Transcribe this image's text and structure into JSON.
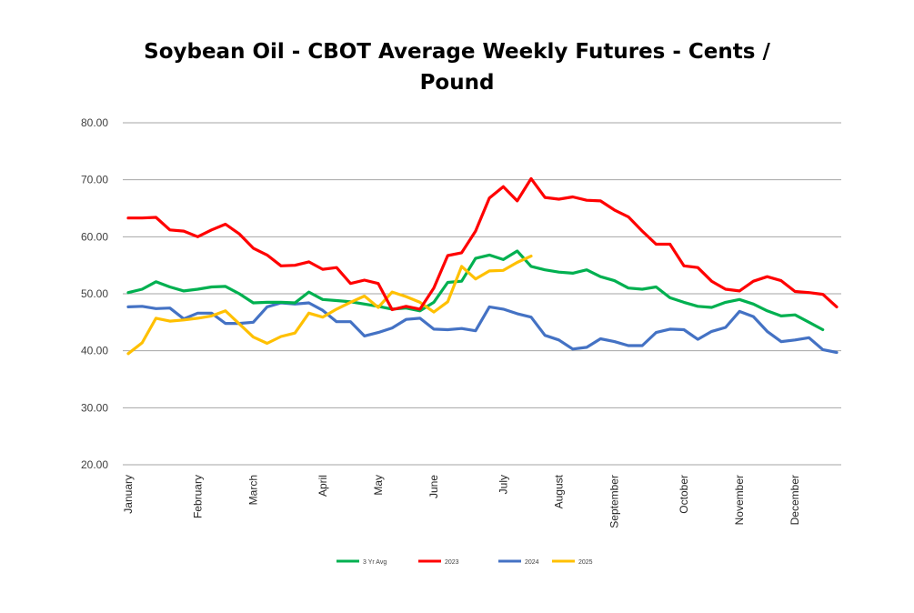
{
  "chart_data": {
    "type": "line",
    "title": "Soybean Oil - CBOT Average Weekly Futures - Cents / Pound",
    "title_lines": [
      "Soybean Oil - CBOT Average Weekly Futures - Cents /",
      "Pound"
    ],
    "xlabel": "",
    "ylabel": "",
    "ylim": [
      20,
      80
    ],
    "yticks": [
      "20.00",
      "30.00",
      "40.00",
      "50.00",
      "60.00",
      "70.00",
      "80.00"
    ],
    "grid": true,
    "legend_position": "bottom",
    "x_unit": "week",
    "x": [
      1,
      2,
      3,
      4,
      5,
      6,
      7,
      8,
      9,
      10,
      11,
      12,
      13,
      14,
      15,
      16,
      17,
      18,
      19,
      20,
      21,
      22,
      23,
      24,
      25,
      26,
      27,
      28,
      29,
      30,
      31,
      32,
      33,
      34,
      35,
      36,
      37,
      38,
      39,
      40,
      41,
      42,
      43,
      44,
      45,
      46,
      47,
      48,
      49,
      50,
      51,
      52
    ],
    "month_labels": [
      {
        "label": "January",
        "week": 1
      },
      {
        "label": "February",
        "week": 6
      },
      {
        "label": "March",
        "week": 10
      },
      {
        "label": "April",
        "week": 15
      },
      {
        "label": "May",
        "week": 19
      },
      {
        "label": "June",
        "week": 23
      },
      {
        "label": "July",
        "week": 28
      },
      {
        "label": "August",
        "week": 32
      },
      {
        "label": "September",
        "week": 36
      },
      {
        "label": "October",
        "week": 41
      },
      {
        "label": "November",
        "week": 45
      },
      {
        "label": "December",
        "week": 49
      }
    ],
    "series": [
      {
        "name": "3 Yr Avg",
        "color": "#00B050",
        "values": [
          50.2,
          50.8,
          52.1,
          51.2,
          50.5,
          50.8,
          51.2,
          51.3,
          50.0,
          48.4,
          48.5,
          48.5,
          48.4,
          50.3,
          49.0,
          48.8,
          48.6,
          48.2,
          47.8,
          47.3,
          47.5,
          47.0,
          48.5,
          52.0,
          52.2,
          56.2,
          56.8,
          56.0,
          57.5,
          54.8,
          54.2,
          53.8,
          53.6,
          54.2,
          53.0,
          52.3,
          51.0,
          50.8,
          51.2,
          49.3,
          48.5,
          47.8,
          47.6,
          48.5,
          49.0,
          48.2,
          47.0,
          46.1,
          46.3,
          45.0,
          43.7,
          null
        ]
      },
      {
        "name": "2023",
        "color": "#FF0000",
        "values": [
          63.3,
          63.3,
          63.4,
          61.2,
          61.0,
          60.0,
          61.2,
          62.2,
          60.5,
          58.0,
          56.8,
          54.9,
          55.0,
          55.6,
          54.3,
          54.6,
          51.8,
          52.4,
          51.8,
          47.2,
          47.8,
          47.3,
          51.0,
          56.7,
          57.2,
          61.0,
          66.8,
          68.8,
          66.3,
          70.2,
          66.9,
          66.6,
          67.0,
          66.4,
          66.3,
          64.7,
          63.5,
          61.0,
          58.7,
          58.7,
          54.9,
          54.6,
          52.2,
          50.8,
          50.5,
          52.2,
          53.0,
          52.3,
          50.4,
          50.2,
          49.9,
          47.7
        ]
      },
      {
        "name": "2024",
        "color": "#4472C4",
        "values": [
          47.7,
          47.8,
          47.4,
          47.5,
          45.6,
          46.6,
          46.6,
          44.8,
          44.8,
          45.0,
          47.7,
          48.4,
          48.2,
          48.4,
          47.1,
          45.1,
          45.1,
          42.6,
          43.2,
          44.0,
          45.5,
          45.7,
          43.8,
          43.7,
          43.9,
          43.5,
          47.7,
          47.3,
          46.5,
          45.9,
          42.7,
          41.9,
          40.3,
          40.6,
          42.1,
          41.6,
          40.9,
          40.9,
          43.2,
          43.8,
          43.7,
          42.0,
          43.4,
          44.1,
          46.9,
          46.0,
          43.4,
          41.6,
          41.9,
          42.3,
          40.2,
          39.7
        ]
      },
      {
        "name": "2025",
        "color": "#FFC000",
        "values": [
          39.5,
          41.4,
          45.7,
          45.2,
          45.4,
          45.7,
          46.1,
          47.0,
          44.7,
          42.4,
          41.3,
          42.5,
          43.1,
          46.6,
          45.9,
          47.3,
          48.5,
          49.6,
          47.6,
          50.3,
          49.5,
          48.5,
          46.8,
          48.6,
          54.8,
          52.6,
          54.0,
          54.1,
          55.5,
          56.6,
          null,
          null,
          null,
          null,
          null,
          null,
          null,
          null,
          null,
          null,
          null,
          null,
          null,
          null,
          null,
          null,
          null,
          null,
          null,
          null,
          null,
          null
        ]
      }
    ]
  }
}
